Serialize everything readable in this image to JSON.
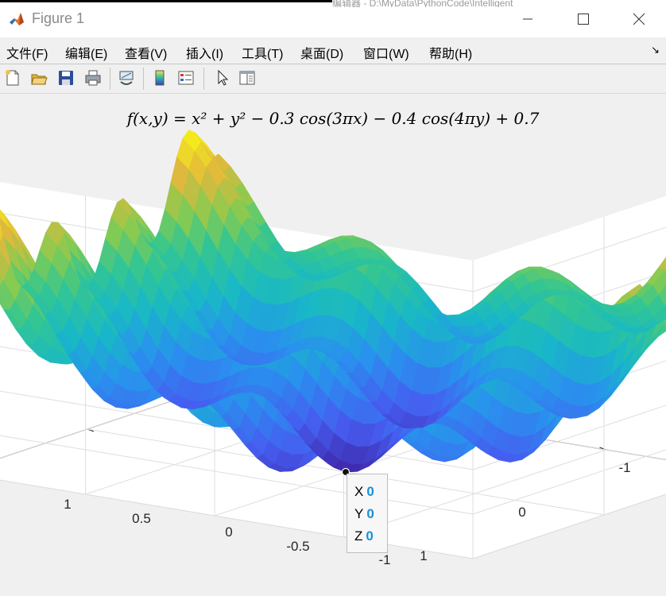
{
  "window": {
    "title": "Figure 1",
    "background_window_text": "编辑器 - D:\\MyData\\PythonCode\\Intelligent"
  },
  "menu": [
    "文件(F)",
    "编辑(E)",
    "查看(V)",
    "插入(I)",
    "工具(T)",
    "桌面(D)",
    "窗口(W)",
    "帮助(H)"
  ],
  "toolbar": [
    "new-figure-icon",
    "open-file-icon",
    "save-icon",
    "print-icon",
    "link-plot-icon",
    "insert-colorbar-icon",
    "insert-legend-icon",
    "edit-plot-arrow-icon",
    "property-inspector-icon"
  ],
  "plot": {
    "title": "f(x,y) = x² + y² − 0.3 cos(3πx) − 0.4 cos(4πy) + 0.7"
  },
  "datatip": {
    "x_label": "X",
    "x_value": "0",
    "y_label": "Y",
    "y_value": "0",
    "z_label": "Z",
    "z_value": "0"
  },
  "chart_data": {
    "type": "surface",
    "title": "f(x,y) = x² + y² − 0.3 cos(3πx) − 0.4 cos(4πy) + 0.7",
    "function": "x^2 + y^2 - 0.3*cos(3*pi*x) - 0.4*cos(4*pi*y) + 0.7",
    "x_ticks": [
      "1",
      "0.5",
      "0",
      "-0.5",
      "-1"
    ],
    "y_ticks": [
      "-1",
      "0",
      "1"
    ],
    "z_ticks": [
      "0",
      "0.5",
      "1",
      "1.5",
      "2",
      "2.5",
      "3"
    ],
    "xlim": [
      -1,
      1
    ],
    "ylim": [
      -1,
      1
    ],
    "zlim": [
      0,
      3
    ],
    "colormap": "parula",
    "grid": true,
    "datatip_point": [
      0,
      0,
      0
    ]
  }
}
